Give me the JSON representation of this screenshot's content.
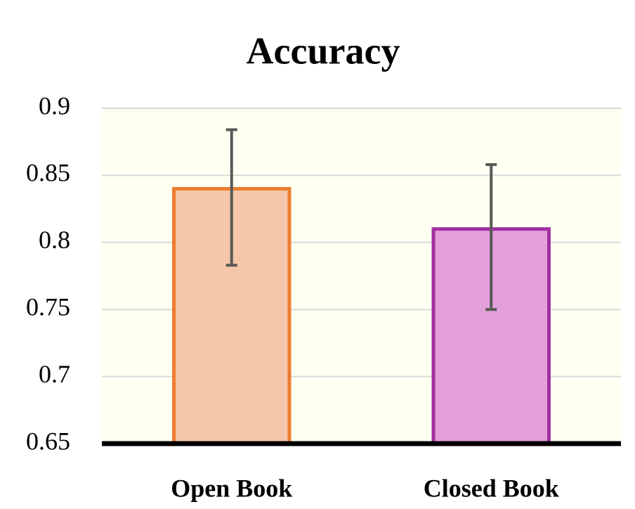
{
  "chart_data": {
    "type": "bar",
    "title": "Accuracy",
    "categories": [
      "Open Book",
      "Closed Book"
    ],
    "values": [
      0.84,
      0.81
    ],
    "err_low": [
      0.783,
      0.75
    ],
    "err_high": [
      0.884,
      0.858
    ],
    "colors": [
      "#f5c6aa",
      "#e4a0db"
    ],
    "edge_colors": [
      "#ed7d31",
      "#a0309f"
    ],
    "ylim": [
      0.65,
      0.9
    ],
    "yticks": [
      0.65,
      0.7,
      0.75,
      0.8,
      0.85,
      0.9
    ],
    "grid": true
  }
}
